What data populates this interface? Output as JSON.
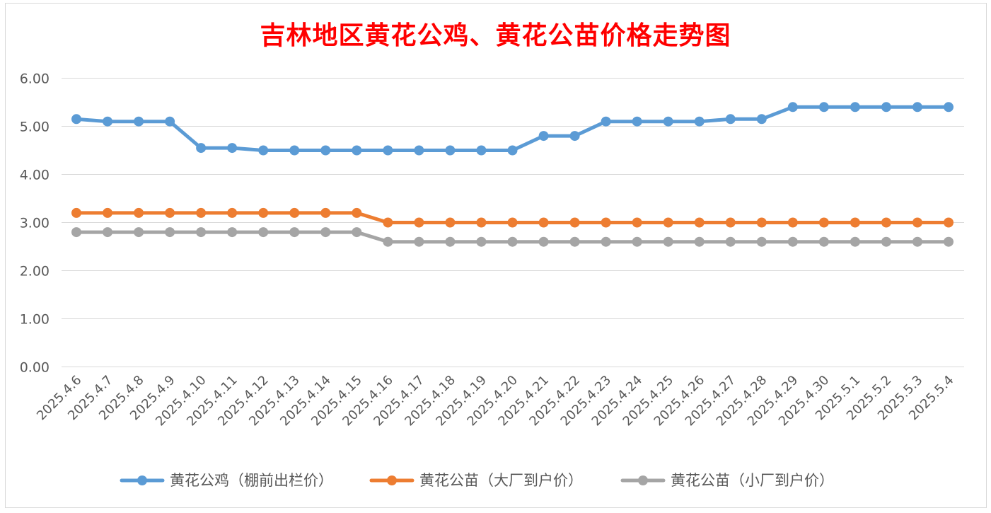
{
  "chart_data": {
    "type": "line",
    "title": "吉林地区黄花公鸡、黄花公苗价格走势图",
    "xlabel": "",
    "ylabel": "",
    "ylim": [
      0,
      6
    ],
    "yticks": [
      "0.00",
      "1.00",
      "2.00",
      "3.00",
      "4.00",
      "5.00",
      "6.00"
    ],
    "grid": true,
    "legend": "bottom",
    "categories": [
      "2025.4.6",
      "2025.4.7",
      "2025.4.8",
      "2025.4.9",
      "2025.4.10",
      "2025.4.11",
      "2025.4.12",
      "2025.4.13",
      "2025.4.14",
      "2025.4.15",
      "2025.4.16",
      "2025.4.17",
      "2025.4.18",
      "2025.4.19",
      "2025.4.20",
      "2025.4.21",
      "2025.4.22",
      "2025.4.23",
      "2025.4.24",
      "2025.4.25",
      "2025.4.26",
      "2025.4.27",
      "2025.4.28",
      "2025.4.29",
      "2025.4.30",
      "2025.5.1",
      "2025.5.2",
      "2025.5.3",
      "2025.5.4"
    ],
    "series": [
      {
        "name": "黄花公鸡（棚前出栏价）",
        "color": "#5b9bd5",
        "values": [
          5.15,
          5.1,
          5.1,
          5.1,
          4.55,
          4.55,
          4.5,
          4.5,
          4.5,
          4.5,
          4.5,
          4.5,
          4.5,
          4.5,
          4.5,
          4.8,
          4.8,
          5.1,
          5.1,
          5.1,
          5.1,
          5.15,
          5.15,
          5.4,
          5.4,
          5.4,
          5.4,
          5.4,
          5.4
        ]
      },
      {
        "name": "黄花公苗（大厂到户价）",
        "color": "#ed7d31",
        "values": [
          3.2,
          3.2,
          3.2,
          3.2,
          3.2,
          3.2,
          3.2,
          3.2,
          3.2,
          3.2,
          3.0,
          3.0,
          3.0,
          3.0,
          3.0,
          3.0,
          3.0,
          3.0,
          3.0,
          3.0,
          3.0,
          3.0,
          3.0,
          3.0,
          3.0,
          3.0,
          3.0,
          3.0,
          3.0
        ]
      },
      {
        "name": "黄花公苗（小厂到户价）",
        "color": "#a5a5a5",
        "values": [
          2.8,
          2.8,
          2.8,
          2.8,
          2.8,
          2.8,
          2.8,
          2.8,
          2.8,
          2.8,
          2.6,
          2.6,
          2.6,
          2.6,
          2.6,
          2.6,
          2.6,
          2.6,
          2.6,
          2.6,
          2.6,
          2.6,
          2.6,
          2.6,
          2.6,
          2.6,
          2.6,
          2.6,
          2.6
        ]
      }
    ]
  }
}
